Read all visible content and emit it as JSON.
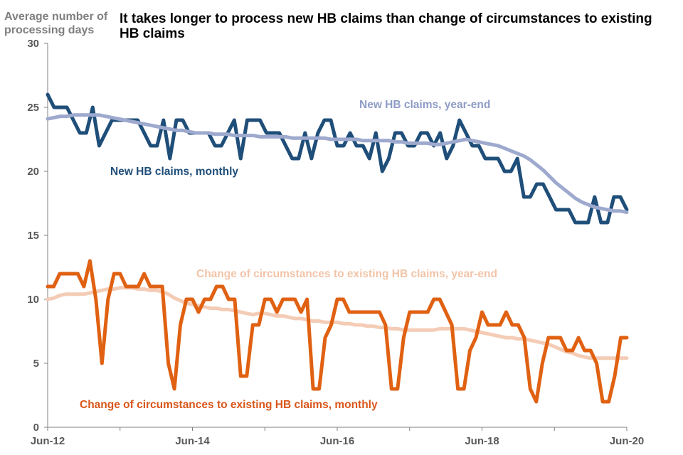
{
  "chart_data": {
    "type": "line",
    "title": "It takes longer to process new HB claims than change of circumstances to existing HB claims",
    "ylabel": "Average number of processing days",
    "xlabel": "",
    "ylim": [
      0,
      30
    ],
    "yticks": [
      0,
      5,
      10,
      15,
      20,
      25,
      30
    ],
    "xticks": [
      "Jun-12",
      "Jun-14",
      "Jun-16",
      "Jun-18",
      "Jun-20"
    ],
    "grid": false,
    "x_start": "Jun-12",
    "x_end": "Jun-20",
    "series": [
      {
        "name": "New HB claims, monthly",
        "color": "#1f4e79",
        "values": [
          26,
          25,
          25,
          25,
          24,
          23,
          23,
          25,
          22,
          23,
          24,
          24,
          24,
          24,
          24,
          23,
          22,
          22,
          24,
          21,
          24,
          24,
          23,
          23,
          23,
          23,
          22,
          22,
          23,
          24,
          21,
          24,
          24,
          24,
          23,
          23,
          23,
          22,
          21,
          21,
          23,
          21,
          23,
          24,
          24,
          22,
          22,
          23,
          22,
          22,
          21,
          23,
          20,
          21,
          23,
          23,
          22,
          22,
          23,
          23,
          22,
          23,
          21,
          22,
          24,
          23,
          22,
          22,
          21,
          21,
          21,
          20,
          20,
          21,
          18,
          18,
          19,
          19,
          18,
          17,
          17,
          17,
          16,
          16,
          16,
          18,
          16,
          16,
          18,
          18,
          17
        ]
      },
      {
        "name": "New HB claims, year-end",
        "color": "#9ea9ce",
        "values": [
          24.1,
          24.2,
          24.3,
          24.3,
          24.4,
          24.4,
          24.4,
          24.4,
          24.4,
          24.3,
          24.2,
          24.1,
          24.0,
          23.9,
          23.8,
          23.7,
          23.6,
          23.5,
          23.4,
          23.3,
          23.2,
          23.2,
          23.1,
          23.0,
          23.0,
          23.0,
          22.9,
          22.9,
          22.9,
          22.8,
          22.8,
          22.8,
          22.8,
          22.7,
          22.7,
          22.7,
          22.7,
          22.7,
          22.6,
          22.6,
          22.6,
          22.6,
          22.6,
          22.6,
          22.5,
          22.5,
          22.5,
          22.5,
          22.5,
          22.4,
          22.4,
          22.4,
          22.4,
          22.4,
          22.3,
          22.3,
          22.2,
          22.2,
          22.2,
          22.2,
          22.1,
          22.1,
          22.2,
          22.3,
          22.4,
          22.5,
          22.4,
          22.3,
          22.2,
          22.1,
          22.0,
          21.8,
          21.6,
          21.4,
          21.2,
          20.9,
          20.5,
          20.1,
          19.6,
          19.1,
          18.7,
          18.3,
          17.9,
          17.6,
          17.4,
          17.2,
          17.1,
          17.0,
          16.9,
          16.9,
          16.8
        ]
      },
      {
        "name": "Change of circumstances to existing HB claims, monthly",
        "color": "#e06112",
        "values": [
          11,
          11,
          12,
          12,
          12,
          12,
          11,
          13,
          10,
          5,
          10,
          12,
          12,
          11,
          11,
          11,
          12,
          11,
          11,
          11,
          5,
          3,
          8,
          10,
          10,
          9,
          10,
          10,
          11,
          11,
          10,
          10,
          4,
          4,
          8,
          8,
          10,
          10,
          9,
          10,
          10,
          10,
          9,
          10,
          3,
          3,
          7,
          8,
          10,
          10,
          9,
          9,
          9,
          9,
          9,
          9,
          8,
          3,
          3,
          7,
          9,
          9,
          9,
          9,
          10,
          10,
          9,
          8,
          3,
          3,
          6,
          7,
          9,
          8,
          8,
          8,
          9,
          8,
          8,
          7,
          3,
          2,
          5,
          7,
          7,
          7,
          6,
          6,
          7,
          6,
          6,
          5,
          2,
          2,
          4,
          7,
          7
        ]
      },
      {
        "name": "Change of circumstances to existing HB claims, year-end",
        "color": "#f4ccb6",
        "values": [
          10.0,
          10.1,
          10.3,
          10.4,
          10.4,
          10.4,
          10.4,
          10.5,
          10.6,
          10.7,
          10.8,
          10.8,
          10.9,
          10.9,
          10.9,
          10.8,
          10.8,
          10.7,
          10.7,
          10.6,
          10.4,
          10.1,
          9.9,
          9.7,
          9.6,
          9.5,
          9.4,
          9.3,
          9.3,
          9.2,
          9.2,
          9.1,
          9.0,
          8.9,
          8.8,
          8.9,
          8.9,
          8.8,
          8.7,
          8.7,
          8.6,
          8.5,
          8.5,
          8.4,
          8.3,
          8.3,
          8.2,
          8.2,
          8.2,
          8.1,
          8.1,
          8.0,
          8.0,
          7.9,
          7.9,
          7.8,
          7.8,
          7.7,
          7.7,
          7.6,
          7.6,
          7.6,
          7.6,
          7.6,
          7.6,
          7.7,
          7.7,
          7.7,
          7.7,
          7.7,
          7.6,
          7.5,
          7.4,
          7.3,
          7.2,
          7.1,
          7.0,
          7.0,
          6.9,
          6.9,
          6.8,
          6.7,
          6.6,
          6.5,
          6.3,
          6.1,
          5.9,
          5.8,
          5.6,
          5.5,
          5.4,
          5.4,
          5.4,
          5.4,
          5.4,
          5.4,
          5.4
        ]
      }
    ],
    "annotations": [
      {
        "text": "New HB claims, year-end",
        "series": 1
      },
      {
        "text": "New HB claims, monthly",
        "series": 0
      },
      {
        "text": "Change of circumstances to existing HB claims, year-end",
        "series": 3
      },
      {
        "text": "Change of circumstances to existing HB claims, monthly",
        "series": 2
      }
    ]
  }
}
